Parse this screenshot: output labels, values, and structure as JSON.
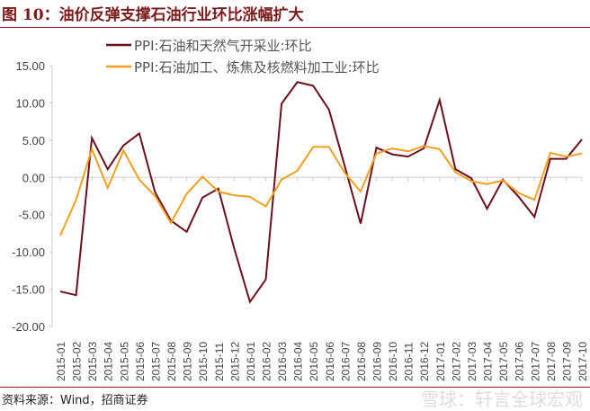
{
  "title": "图 10：油价反弹支撑石油行业环比涨幅扩大",
  "source": "资料来源：Wind，招商证券",
  "watermark": "雪球：轩言全球宏观",
  "chart_data": {
    "type": "line",
    "ylim": [
      -20,
      15
    ],
    "yticks": [
      "15.00",
      "10.00",
      "5.00",
      "0.00",
      "-5.00",
      "-10.00",
      "-15.00",
      "-20.00"
    ],
    "ytick_values": [
      15,
      10,
      5,
      0,
      -5,
      -10,
      -15,
      -20
    ],
    "legend_position": "top",
    "grid": false,
    "categories": [
      "2015-01",
      "2015-02",
      "2015-03",
      "2015-04",
      "2015-05",
      "2015-06",
      "2015-07",
      "2015-08",
      "2015-09",
      "2015-10",
      "2015-11",
      "2015-12",
      "2016-01",
      "2016-02",
      "2016-03",
      "2016-04",
      "2016-05",
      "2016-06",
      "2016-07",
      "2016-08",
      "2016-09",
      "2016-10",
      "2016-11",
      "2016-12",
      "2017-01",
      "2017-02",
      "2017-03",
      "2017-04",
      "2017-05",
      "2017-06",
      "2017-07",
      "2017-08",
      "2017-09",
      "2017-10"
    ],
    "series": [
      {
        "name": "PPI:石油和天然气开采业:环比",
        "color": "#6b0f1a",
        "values": [
          -15.3,
          -15.8,
          5.3,
          1.1,
          4.3,
          5.9,
          -2.0,
          -5.8,
          -7.3,
          -2.7,
          -1.5,
          -9.5,
          -16.7,
          -13.7,
          9.9,
          12.8,
          12.3,
          9.1,
          1.5,
          -6.2,
          4.0,
          3.1,
          2.8,
          3.9,
          10.4,
          1.1,
          -0.1,
          -4.2,
          -0.3,
          -2.6,
          -5.3,
          2.5,
          2.5,
          5.1
        ]
      },
      {
        "name": "PPI:石油加工、炼焦及核燃料加工业:环比",
        "color": "#f0a020",
        "values": [
          -7.8,
          -3.0,
          3.8,
          -1.4,
          3.6,
          -0.3,
          -2.5,
          -6.1,
          -2.2,
          0.1,
          -1.9,
          -2.4,
          -2.6,
          -3.9,
          -0.3,
          0.9,
          4.1,
          4.1,
          0.6,
          -1.9,
          3.2,
          3.9,
          3.5,
          4.2,
          3.8,
          0.7,
          -0.5,
          -0.9,
          -0.4,
          -2.1,
          -3.0,
          3.3,
          2.8,
          3.2
        ]
      }
    ]
  }
}
